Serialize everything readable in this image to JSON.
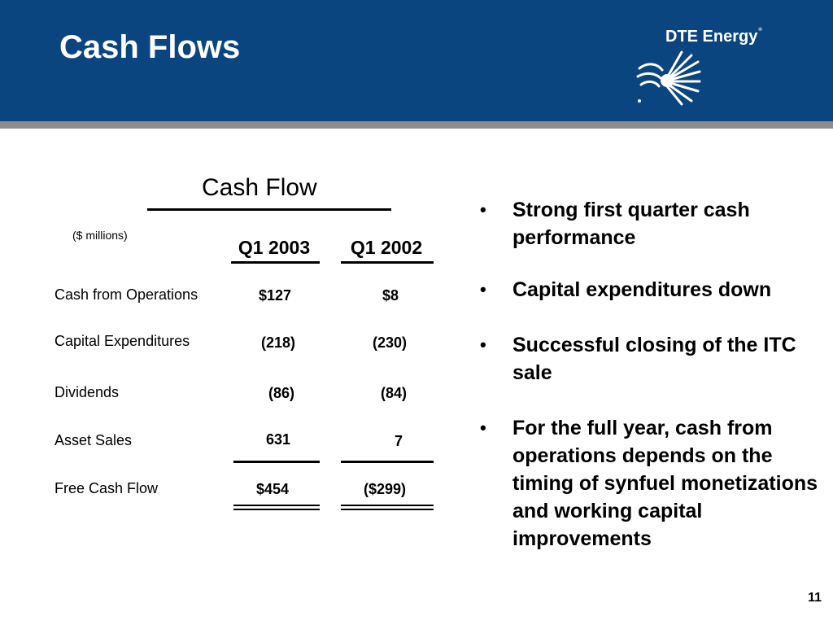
{
  "slide": {
    "title": "Cash Flows",
    "logo_text": "DTE Energy",
    "logo_reg": "®",
    "page_number": "11"
  },
  "table": {
    "title": "Cash Flow",
    "units": "($ millions)",
    "columns": [
      "Q1 2003",
      "Q1 2002"
    ],
    "rows": [
      {
        "label": "Cash from Operations",
        "values": [
          "$127",
          "$8"
        ]
      },
      {
        "label": "Capital Expenditures",
        "values": [
          "(218)",
          "(230)"
        ]
      },
      {
        "label": "Dividends",
        "values": [
          "(86)",
          "(84)"
        ]
      },
      {
        "label": "Asset Sales",
        "values": [
          "631",
          "7"
        ]
      },
      {
        "label": "Free Cash Flow",
        "values": [
          "$454",
          "($299)"
        ]
      }
    ]
  },
  "bullets": [
    "Strong first quarter cash performance",
    "Capital expenditures down",
    "Successful closing of the ITC sale",
    "For the full year, cash from operations depends on the timing of synfuel monetizations and working capital improvements"
  ],
  "colors": {
    "header": "#0a4580",
    "header_bar": "#8c8c8c"
  }
}
